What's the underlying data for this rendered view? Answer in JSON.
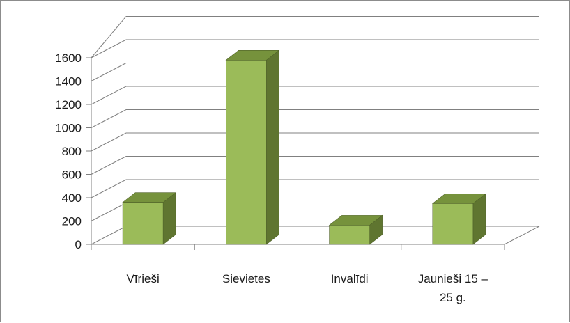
{
  "chart_data": {
    "type": "bar",
    "style": "3d-clustered-column",
    "categories": [
      "Vīrieši",
      "Sievietes",
      "Invalīdi",
      "Jaunieši 15 – 25 g."
    ],
    "category_lines": [
      [
        "Vīrieši"
      ],
      [
        "Sievietes"
      ],
      [
        "Invalīdi"
      ],
      [
        "Jaunieši 15 –",
        "25 g."
      ]
    ],
    "values": [
      360,
      1580,
      165,
      350
    ],
    "ylim": [
      0,
      1600
    ],
    "yticks": [
      0,
      200,
      400,
      600,
      800,
      1000,
      1200,
      1400,
      1600
    ],
    "grid": true,
    "legend": "none",
    "colors": {
      "front": "#9bbb59",
      "side": "#5f7530",
      "top": "#76923c",
      "edge": "#4f6228",
      "grid": "#808080"
    }
  }
}
